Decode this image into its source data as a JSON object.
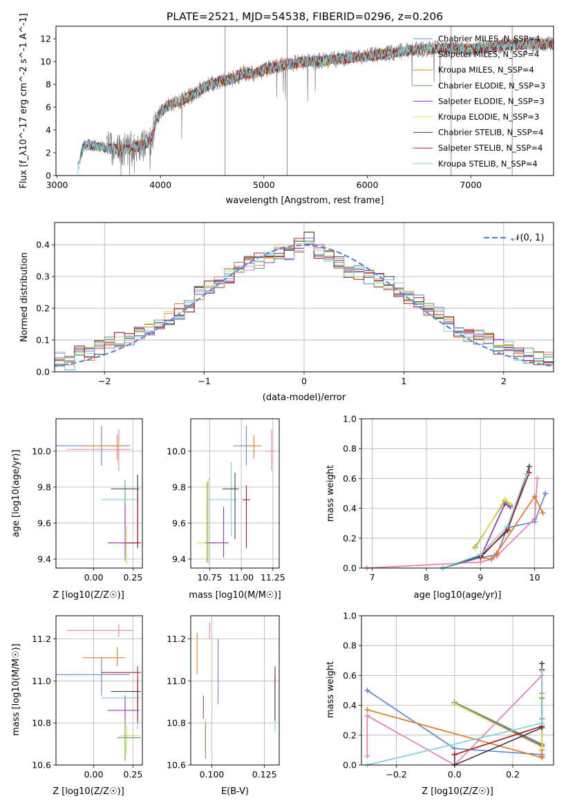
{
  "chart_data": [
    {
      "type": "line",
      "title": "PLATE=2521, MJD=54538, FIBERID=0296, z=0.206",
      "xlabel": "wavelength [Angstrom, rest frame]",
      "ylabel": "Flux [f_λ10^-17 erg cm^-2 s^-1 A^-1]",
      "xlim": [
        2990,
        7800
      ],
      "ylim": [
        0,
        13.1
      ],
      "xticks": [
        "3000",
        "4000",
        "5000",
        "6000",
        "7000"
      ],
      "yticks": [
        "0",
        "2",
        "4",
        "6",
        "8",
        "10",
        "12"
      ],
      "legend_position": "right",
      "data_series_color": "#808080",
      "series": [
        {
          "name": "Chabrier MILES, N_SSP=4",
          "color": "#5b87d9"
        },
        {
          "name": "Salpeter MILES, N_SSP=4",
          "color": "#f07ab3"
        },
        {
          "name": "Kroupa MILES, N_SSP=4",
          "color": "#e07a1f"
        },
        {
          "name": "Chabrier ELODIE, N_SSP=3",
          "color": "#5a9e5a"
        },
        {
          "name": "Salpeter ELODIE, N_SSP=3",
          "color": "#9b30c0"
        },
        {
          "name": "Kroupa ELODIE, N_SSP=3",
          "color": "#d8e04a"
        },
        {
          "name": "Chabrier STELIB, N_SSP=4",
          "color": "#404040"
        },
        {
          "name": "Salpeter STELIB, N_SSP=4",
          "color": "#b01c1c"
        },
        {
          "name": "Kroupa STELIB, N_SSP=4",
          "color": "#7fd0dd"
        }
      ],
      "continuum": {
        "x": [
          3200,
          3250,
          3300,
          3400,
          3500,
          3600,
          3700,
          3800,
          3900,
          3950,
          4000,
          4100,
          4200,
          4300,
          4400,
          4500,
          4600,
          4700,
          4800,
          4900,
          5000,
          5200,
          5400,
          5600,
          5800,
          6000,
          6200,
          6400,
          6600,
          6800,
          7000,
          7200,
          7400,
          7600,
          7800
        ],
        "y": [
          0.5,
          2.5,
          2.7,
          2.6,
          2.4,
          2.2,
          2.4,
          2.6,
          3.0,
          4.5,
          5.6,
          6.3,
          6.6,
          7.0,
          7.6,
          8.1,
          8.3,
          8.5,
          9.0,
          8.9,
          9.3,
          9.7,
          10.0,
          10.1,
          10.3,
          10.5,
          10.7,
          11.0,
          11.1,
          11.2,
          11.1,
          11.3,
          11.5,
          11.5,
          11.6
        ]
      }
    },
    {
      "type": "line",
      "xlabel": "(data-model)/error",
      "ylabel": "Normed distribution",
      "xlim": [
        -2.5,
        2.5
      ],
      "ylim": [
        0,
        0.47
      ],
      "xticks": [
        "−2",
        "−1",
        "0",
        "1",
        "2"
      ],
      "yticks": [
        "0.0",
        "0.1",
        "0.2",
        "0.3",
        "0.4"
      ],
      "legend": "𝒩(0, 1)",
      "gaussian": {
        "mean": 0,
        "sigma": 1,
        "color": "#5b87d9"
      },
      "bin_edges": [
        -2.5,
        -2.4,
        -2.3,
        -2.2,
        -2.1,
        -2.0,
        -1.9,
        -1.8,
        -1.7,
        -1.6,
        -1.5,
        -1.4,
        -1.3,
        -1.2,
        -1.1,
        -1.0,
        -0.9,
        -0.8,
        -0.7,
        -0.6,
        -0.5,
        -0.4,
        -0.3,
        -0.2,
        -0.1,
        0.0,
        0.1,
        0.2,
        0.3,
        0.4,
        0.5,
        0.6,
        0.7,
        0.8,
        0.9,
        1.0,
        1.1,
        1.2,
        1.3,
        1.4,
        1.5,
        1.6,
        1.7,
        1.8,
        1.9,
        2.0,
        2.1,
        2.2,
        2.3,
        2.4,
        2.5
      ],
      "base_counts": [
        0.04,
        0.03,
        0.07,
        0.06,
        0.08,
        0.09,
        0.1,
        0.1,
        0.12,
        0.14,
        0.14,
        0.17,
        0.19,
        0.21,
        0.25,
        0.27,
        0.28,
        0.3,
        0.33,
        0.34,
        0.35,
        0.36,
        0.38,
        0.37,
        0.4,
        0.42,
        0.38,
        0.36,
        0.34,
        0.32,
        0.31,
        0.3,
        0.29,
        0.28,
        0.26,
        0.24,
        0.22,
        0.2,
        0.19,
        0.15,
        0.13,
        0.12,
        0.11,
        0.1,
        0.08,
        0.07,
        0.06,
        0.05,
        0.04,
        0.04
      ]
    },
    {
      "type": "scatter",
      "xlabel": "Z [log10(Z/Z☉)]",
      "ylabel": "age  [log10(age/yr)]",
      "xlim": [
        -0.24,
        0.31
      ],
      "ylim": [
        9.35,
        10.18
      ],
      "xticks": [
        "0.00",
        "0.25"
      ],
      "yticks": [
        "9.4",
        "9.6",
        "9.8",
        "10.0"
      ],
      "points": [
        {
          "color": "#5b87d9",
          "x": 0.05,
          "y": 10.03,
          "xerr": [
            0.29,
            0.18
          ],
          "yerr": [
            0.11,
            0.11
          ]
        },
        {
          "color": "#f07ab3",
          "x": 0.16,
          "y": 10.01,
          "xerr": [
            0.33,
            0.08
          ],
          "yerr": [
            0.12,
            0.11
          ]
        },
        {
          "color": "#e07a1f",
          "x": 0.15,
          "y": 10.03,
          "xerr": [
            0.22,
            0.05
          ],
          "yerr": [
            0.08,
            0.06
          ]
        },
        {
          "color": "#d8e04a",
          "x": 0.21,
          "y": 9.49,
          "xerr": [
            0.04,
            0.07
          ],
          "yerr": [
            0.12,
            0.1
          ]
        },
        {
          "color": "#5a9e5a",
          "x": 0.2,
          "y": 9.49,
          "xerr": [
            0.05,
            0.09
          ],
          "yerr": [
            0.1,
            0.35
          ]
        },
        {
          "color": "#9b30c0",
          "x": 0.2,
          "y": 9.49,
          "xerr": [
            0.11,
            0.09
          ],
          "yerr": [
            0.07,
            0.22
          ]
        },
        {
          "color": "#7fd0dd",
          "x": 0.28,
          "y": 9.73,
          "xerr": [
            0.23,
            0.01
          ],
          "yerr": [
            0.27,
            0.14
          ]
        },
        {
          "color": "#404040",
          "x": 0.28,
          "y": 9.79,
          "xerr": [
            0.17,
            0.01
          ],
          "yerr": [
            0.3,
            0.08
          ]
        },
        {
          "color": "#b01c1c",
          "x": 0.28,
          "y": 9.49,
          "xerr": [
            0.07,
            0.02
          ],
          "yerr": [
            0.03,
            0.3
          ]
        }
      ]
    },
    {
      "type": "scatter",
      "xlabel": "mass [log10(M/M☉)]",
      "xlim": [
        10.6,
        11.3
      ],
      "ylim": [
        9.35,
        10.18
      ],
      "xticks": [
        "10.75",
        "11.00",
        "11.25"
      ],
      "yticks": [
        "9.4",
        "9.6",
        "9.8",
        "10.0"
      ],
      "points": [
        {
          "color": "#5b87d9",
          "x": 11.04,
          "y": 10.03,
          "xerr": [
            0.1,
            0.05
          ],
          "yerr": [
            0.11,
            0.11
          ]
        },
        {
          "color": "#f07ab3",
          "x": 11.24,
          "y": 10.0,
          "xerr": [
            0.05,
            0.03
          ],
          "yerr": [
            0.11,
            0.12
          ]
        },
        {
          "color": "#e07a1f",
          "x": 11.1,
          "y": 10.03,
          "xerr": [
            0.06,
            0.06
          ],
          "yerr": [
            0.07,
            0.06
          ]
        },
        {
          "color": "#d8e04a",
          "x": 10.74,
          "y": 9.49,
          "xerr": [
            0.09,
            0.07
          ],
          "yerr": [
            0.12,
            0.36
          ]
        },
        {
          "color": "#5a9e5a",
          "x": 10.73,
          "y": 9.49,
          "xerr": [
            0.02,
            0.04
          ],
          "yerr": [
            0.11,
            0.34
          ]
        },
        {
          "color": "#9b30c0",
          "x": 10.86,
          "y": 9.49,
          "xerr": [
            0.11,
            0.04
          ],
          "yerr": [
            0.08,
            0.2
          ]
        },
        {
          "color": "#7fd0dd",
          "x": 10.92,
          "y": 9.73,
          "xerr": [
            0.18,
            0.05
          ],
          "yerr": [
            0.2,
            0.21
          ]
        },
        {
          "color": "#404040",
          "x": 10.95,
          "y": 9.79,
          "xerr": [
            0.1,
            0.03
          ],
          "yerr": [
            0.28,
            0.09
          ]
        },
        {
          "color": "#b01c1c",
          "x": 11.04,
          "y": 9.73,
          "xerr": [
            0.03,
            0.03
          ],
          "yerr": [
            0.27,
            0.08
          ]
        }
      ]
    },
    {
      "type": "line",
      "xlabel": "age  [log10(age/yr)]",
      "ylabel": "mass weight",
      "xlim": [
        6.8,
        10.35
      ],
      "ylim": [
        0,
        1.0
      ],
      "xticks": [
        "7",
        "8",
        "9",
        "10"
      ],
      "yticks": [
        "0.0",
        "0.2",
        "0.4",
        "0.6",
        "0.8",
        "1.0"
      ],
      "series": [
        {
          "color": "#5b87d9",
          "x": [
            8.3,
            9.0,
            9.3,
            9.5,
            10.0,
            10.2
          ],
          "y": [
            0.0,
            0.07,
            0.09,
            0.27,
            0.31,
            0.5
          ]
        },
        {
          "color": "#f07ab3",
          "x": [
            6.9,
            9.0,
            9.2,
            9.3,
            10.0,
            10.05
          ],
          "y": [
            0.0,
            0.04,
            0.06,
            0.08,
            0.33,
            0.6
          ]
        },
        {
          "color": "#e07a1f",
          "x": [
            9.0,
            9.2,
            9.3,
            10.0,
            10.15
          ],
          "y": [
            0.07,
            0.06,
            0.1,
            0.48,
            0.37
          ]
        },
        {
          "color": "#5a9e5a",
          "x": [
            8.9,
            9.45,
            9.55
          ],
          "y": [
            0.14,
            0.45,
            0.42
          ]
        },
        {
          "color": "#9b30c0",
          "x": [
            9.0,
            9.45,
            9.55
          ],
          "y": [
            0.07,
            0.43,
            0.41
          ]
        },
        {
          "color": "#d8e04a",
          "x": [
            8.9,
            9.45,
            9.55
          ],
          "y": [
            0.13,
            0.46,
            0.43
          ]
        },
        {
          "color": "#404040",
          "x": [
            8.3,
            9.0,
            9.5,
            9.9
          ],
          "y": [
            0.0,
            0.08,
            0.25,
            0.68
          ]
        },
        {
          "color": "#b01c1c",
          "x": [
            9.0,
            9.5,
            9.9
          ],
          "y": [
            0.07,
            0.26,
            0.64
          ]
        },
        {
          "color": "#7fd0dd",
          "x": [
            8.3,
            9.0,
            9.5,
            9.85
          ],
          "y": [
            0.0,
            0.09,
            0.28,
            0.63
          ]
        }
      ]
    },
    {
      "type": "scatter",
      "xlabel": "Z [log10(Z/Z☉)]",
      "ylabel": "mass [log10(M/M☉)]",
      "xlim": [
        -0.24,
        0.31
      ],
      "ylim": [
        10.6,
        11.31
      ],
      "xticks": [
        "0.00",
        "0.25"
      ],
      "yticks": [
        "10.6",
        "10.8",
        "11.0",
        "11.2"
      ],
      "points": [
        {
          "color": "#5b87d9",
          "x": 0.05,
          "y": 11.03,
          "xerr": [
            0.29,
            0.18
          ],
          "yerr": [
            0.1,
            0.08
          ]
        },
        {
          "color": "#f07ab3",
          "x": 0.16,
          "y": 11.24,
          "xerr": [
            0.33,
            0.09
          ],
          "yerr": [
            0.03,
            0.03
          ]
        },
        {
          "color": "#e07a1f",
          "x": 0.15,
          "y": 11.11,
          "xerr": [
            0.22,
            0.05
          ],
          "yerr": [
            0.04,
            0.05
          ]
        },
        {
          "color": "#d8e04a",
          "x": 0.21,
          "y": 10.74,
          "xerr": [
            0.04,
            0.08
          ],
          "yerr": [
            0.09,
            0.05
          ]
        },
        {
          "color": "#5a9e5a",
          "x": 0.2,
          "y": 10.73,
          "xerr": [
            0.05,
            0.1
          ],
          "yerr": [
            0.11,
            0.08
          ]
        },
        {
          "color": "#9b30c0",
          "x": 0.2,
          "y": 10.86,
          "xerr": [
            0.11,
            0.09
          ],
          "yerr": [
            0.05,
            0.07
          ]
        },
        {
          "color": "#7fd0dd",
          "x": 0.28,
          "y": 10.92,
          "xerr": [
            0.23,
            0.02
          ],
          "yerr": [
            0.15,
            0.09
          ]
        },
        {
          "color": "#404040",
          "x": 0.28,
          "y": 10.95,
          "xerr": [
            0.17,
            0.02
          ],
          "yerr": [
            0.09,
            0.06
          ]
        },
        {
          "color": "#b01c1c",
          "x": 0.28,
          "y": 11.04,
          "xerr": [
            0.23,
            0.02
          ],
          "yerr": [
            0.24,
            0.03
          ]
        }
      ]
    },
    {
      "type": "scatter",
      "xlabel": "E(B-V)",
      "xlim": [
        0.09,
        0.132
      ],
      "ylim": [
        10.6,
        11.31
      ],
      "xticks": [
        "0.100",
        "0.125"
      ],
      "yticks": [
        "10.6",
        "10.8",
        "11.0",
        "11.2"
      ],
      "points": [
        {
          "color": "#5b87d9",
          "x": 0.103,
          "y": 11.05,
          "yerr": [
            0.16,
            0.15
          ]
        },
        {
          "color": "#f07ab3",
          "x": 0.099,
          "y": 11.24,
          "yerr": [
            0.04,
            0.04
          ]
        },
        {
          "color": "#e07a1f",
          "x": 0.093,
          "y": 11.12,
          "yerr": [
            0.09,
            0.11
          ]
        },
        {
          "color": "#d8e04a",
          "x": 0.097,
          "y": 10.73,
          "yerr": [
            0.08,
            0.09
          ]
        },
        {
          "color": "#5a9e5a",
          "x": 0.097,
          "y": 10.73,
          "yerr": [
            0.1,
            0.07
          ]
        },
        {
          "color": "#9b30c0",
          "x": 0.096,
          "y": 10.86,
          "yerr": [
            0.04,
            0.07
          ]
        },
        {
          "color": "#7fd0dd",
          "x": 0.13,
          "y": 10.92,
          "yerr": [
            0.16,
            0.09
          ]
        },
        {
          "color": "#404040",
          "x": 0.13,
          "y": 10.95,
          "yerr": [
            0.14,
            0.07
          ]
        },
        {
          "color": "#b01c1c",
          "x": 0.13,
          "y": 11.04,
          "yerr": [
            0.06,
            0.03
          ]
        }
      ]
    },
    {
      "type": "line",
      "xlabel": "Z [log10(Z/Z☉)]",
      "ylabel": "mass weight",
      "xlim": [
        -0.32,
        0.34
      ],
      "ylim": [
        0,
        1.0
      ],
      "xticks": [
        "−0.2",
        "0.0",
        "0.2"
      ],
      "yticks": [
        "0.0",
        "0.2",
        "0.4",
        "0.6",
        "0.8",
        "1.0"
      ],
      "series": [
        {
          "color": "#5b87d9",
          "x": [
            -0.3,
            0.0,
            0.3,
            0.3
          ],
          "y": [
            0.5,
            0.11,
            0.07,
            0.31
          ]
        },
        {
          "color": "#f07ab3",
          "x": [
            -0.3,
            -0.3,
            0.0,
            0.3,
            0.3
          ],
          "y": [
            0.06,
            0.33,
            0.0,
            0.6,
            0.06
          ]
        },
        {
          "color": "#e07a1f",
          "x": [
            -0.3,
            0.3,
            0.3,
            0.3
          ],
          "y": [
            0.37,
            0.05,
            0.48,
            0.1
          ]
        },
        {
          "color": "#5a9e5a",
          "x": [
            0.0,
            0.3,
            0.3
          ],
          "y": [
            0.42,
            0.14,
            0.45
          ]
        },
        {
          "color": "#9b30c0",
          "x": [
            0.0,
            0.3
          ],
          "y": [
            0.41,
            0.13
          ]
        },
        {
          "color": "#d8e04a",
          "x": [
            0.0,
            0.3,
            0.3
          ],
          "y": [
            0.41,
            0.12,
            0.44
          ]
        },
        {
          "color": "#404040",
          "x": [
            0.0,
            0.0,
            0.3,
            0.3
          ],
          "y": [
            0.07,
            0.0,
            0.25,
            0.68
          ]
        },
        {
          "color": "#b01c1c",
          "x": [
            0.0,
            0.3,
            0.3
          ],
          "y": [
            0.07,
            0.26,
            0.64
          ]
        },
        {
          "color": "#7fd0dd",
          "x": [
            -0.3,
            0.3,
            0.3
          ],
          "y": [
            0.0,
            0.28,
            0.63
          ]
        }
      ]
    }
  ]
}
